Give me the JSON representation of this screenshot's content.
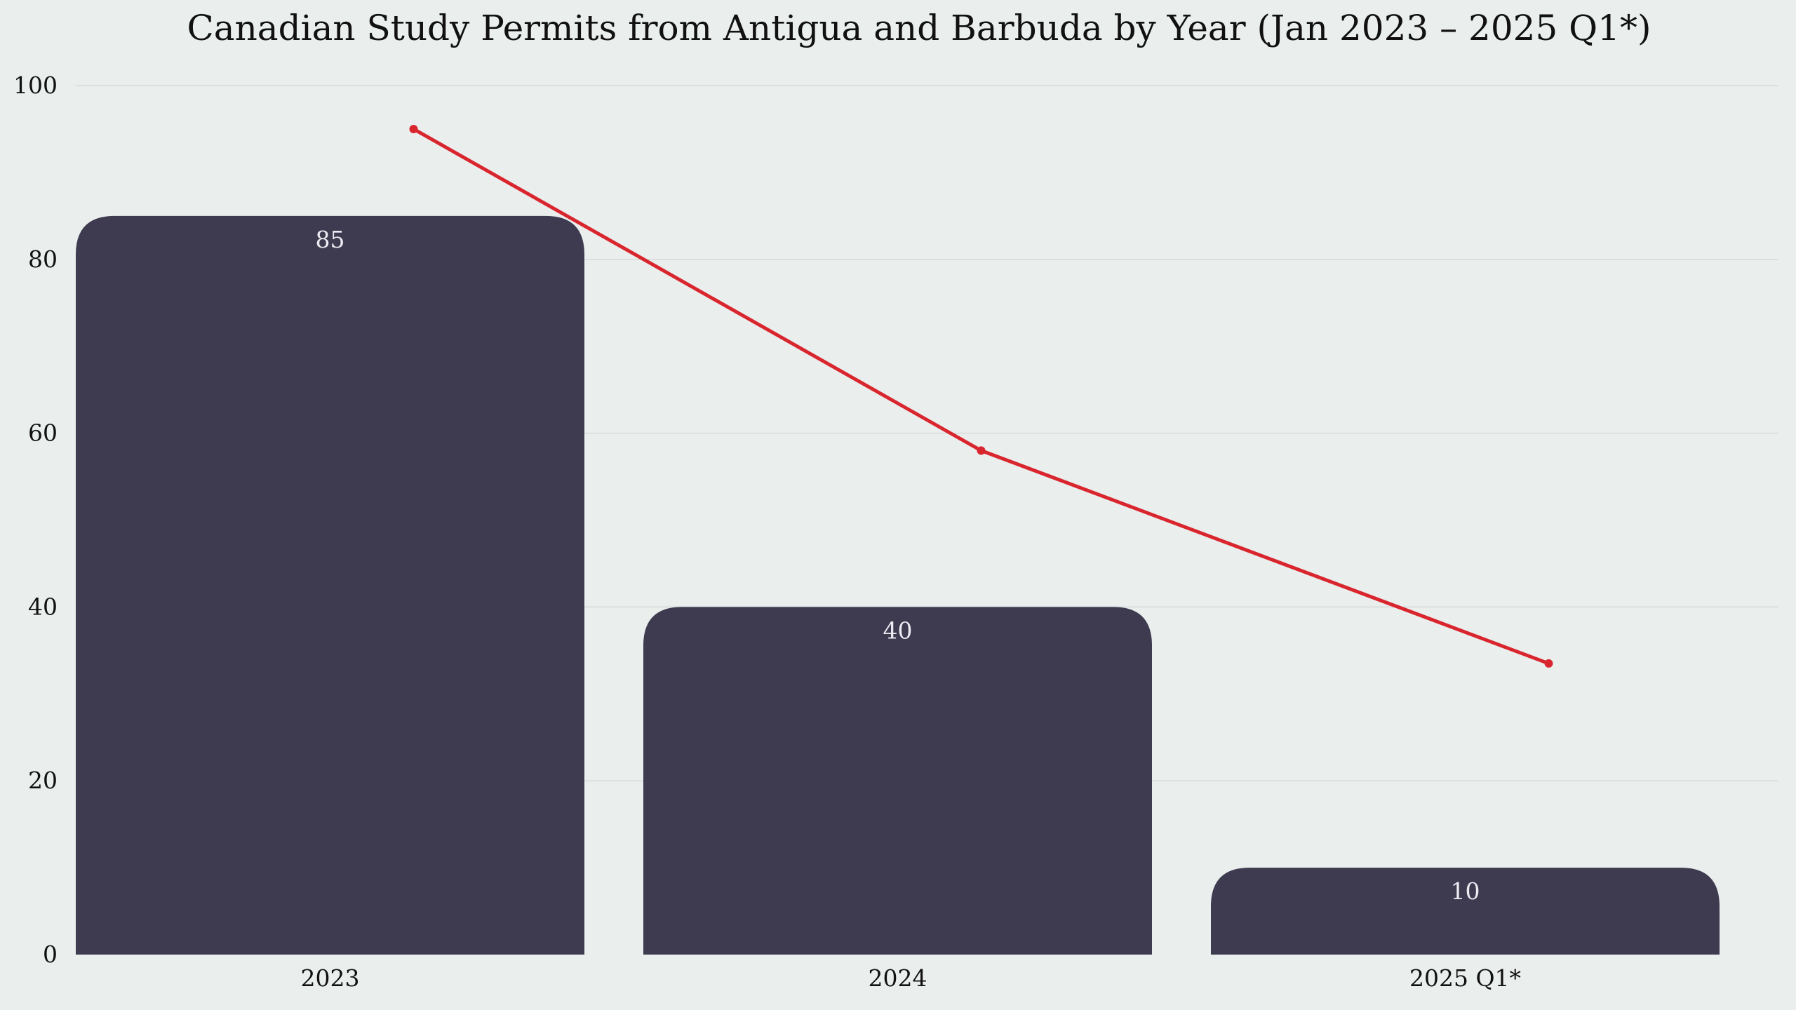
{
  "chart_data": {
    "type": "bar",
    "title": "Canadian Study Permits from Antigua and Barbuda by Year (Jan 2023 – 2025 Q1*)",
    "xlabel": "",
    "ylabel": "",
    "categories": [
      "2023",
      "2024",
      "2025 Q1*"
    ],
    "series": [
      {
        "name": "Study permits",
        "kind": "bar",
        "values": [
          85,
          40,
          10
        ],
        "color": "#3e3a50"
      },
      {
        "name": "Trend",
        "kind": "line",
        "values": [
          95,
          58,
          33.5
        ],
        "color": "#d9262e"
      }
    ],
    "data_labels": [
      "85",
      "40",
      "10"
    ],
    "ylim": [
      0,
      100
    ],
    "yticks": [
      0,
      20,
      40,
      60,
      80,
      100
    ],
    "ytick_labels": [
      "0",
      "20",
      "40",
      "60",
      "80",
      "100"
    ],
    "grid": true,
    "legend": "none"
  },
  "colors": {
    "background": "#eaeeed",
    "bar": "#3e3a50",
    "line": "#d9262e",
    "bar_label": "#ecebf2",
    "grid": "#d6dad9"
  }
}
